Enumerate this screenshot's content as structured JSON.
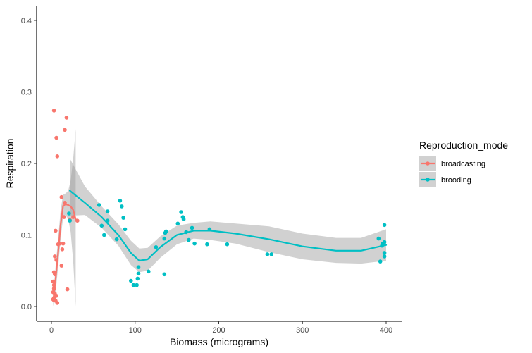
{
  "chart_data": {
    "type": "scatter",
    "title": "",
    "xlabel": "Biomass (micrograms)",
    "ylabel": "Respiration",
    "xlim": [
      -10,
      415
    ],
    "ylim": [
      -0.018,
      0.42
    ],
    "x_ticks": [
      0,
      100,
      200,
      300,
      400
    ],
    "y_ticks": [
      0.0,
      0.1,
      0.2,
      0.3,
      0.4
    ],
    "x_tick_labels": [
      "0",
      "100",
      "200",
      "300",
      "400"
    ],
    "y_tick_labels": [
      "0.0",
      "0.1",
      "0.2",
      "0.3",
      "0.4"
    ],
    "grid": false,
    "smoothing": "loess with confidence band",
    "legend": {
      "title": "Reproduction_mode",
      "placement": "right",
      "entries": [
        "broadcasting",
        "brooding"
      ]
    },
    "colors": {
      "broadcasting": "#F8766D",
      "brooding": "#00BFC4",
      "band": "#999999"
    },
    "series": [
      {
        "name": "broadcasting",
        "points": [
          [
            2,
            0.01
          ],
          [
            3,
            0.012
          ],
          [
            4,
            0.018
          ],
          [
            5,
            0.008
          ],
          [
            6,
            0.015
          ],
          [
            7,
            0.005
          ],
          [
            2,
            0.02
          ],
          [
            3,
            0.025
          ],
          [
            3,
            0.03
          ],
          [
            2,
            0.035
          ],
          [
            4,
            0.045
          ],
          [
            3,
            0.048
          ],
          [
            6,
            0.065
          ],
          [
            4,
            0.07
          ],
          [
            5,
            0.106
          ],
          [
            8,
            0.087
          ],
          [
            10,
            0.088
          ],
          [
            12,
            0.057
          ],
          [
            13,
            0.08
          ],
          [
            14,
            0.088
          ],
          [
            12,
            0.153
          ],
          [
            15,
            0.125
          ],
          [
            16,
            0.145
          ],
          [
            19,
            0.024
          ],
          [
            3,
            0.274
          ],
          [
            6,
            0.236
          ],
          [
            7,
            0.21
          ],
          [
            16,
            0.247
          ],
          [
            18,
            0.264
          ],
          [
            22,
            0.121
          ],
          [
            26,
            0.125
          ],
          [
            31,
            0.12
          ]
        ],
        "smooth_x": [
          2,
          5,
          8,
          11,
          14,
          17,
          20,
          23,
          26,
          29
        ],
        "smooth_y": [
          0.007,
          0.038,
          0.075,
          0.115,
          0.141,
          0.143,
          0.142,
          0.14,
          0.135,
          0.122
        ],
        "band_lower": [
          0.0,
          0.02,
          0.055,
          0.095,
          0.125,
          0.128,
          0.122,
          0.104,
          0.063,
          0.0
        ],
        "band_upper": [
          0.015,
          0.056,
          0.095,
          0.135,
          0.157,
          0.158,
          0.162,
          0.176,
          0.207,
          0.248
        ]
      },
      {
        "name": "brooding",
        "points": [
          [
            21,
            0.13
          ],
          [
            22,
            0.12
          ],
          [
            57,
            0.142
          ],
          [
            60,
            0.113
          ],
          [
            63,
            0.1
          ],
          [
            67,
            0.133
          ],
          [
            67,
            0.12
          ],
          [
            78,
            0.094
          ],
          [
            82,
            0.148
          ],
          [
            84,
            0.14
          ],
          [
            86,
            0.124
          ],
          [
            88,
            0.108
          ],
          [
            95,
            0.036
          ],
          [
            98,
            0.03
          ],
          [
            102,
            0.03
          ],
          [
            104,
            0.046
          ],
          [
            104,
            0.055
          ],
          [
            103,
            0.039
          ],
          [
            116,
            0.049
          ],
          [
            125,
            0.083
          ],
          [
            135,
            0.095
          ],
          [
            136,
            0.103
          ],
          [
            137,
            0.105
          ],
          [
            135,
            0.045
          ],
          [
            151,
            0.116
          ],
          [
            155,
            0.132
          ],
          [
            157,
            0.125
          ],
          [
            158,
            0.122
          ],
          [
            161,
            0.104
          ],
          [
            164,
            0.093
          ],
          [
            168,
            0.11
          ],
          [
            171,
            0.088
          ],
          [
            186,
            0.087
          ],
          [
            189,
            0.108
          ],
          [
            210,
            0.087
          ],
          [
            258,
            0.073
          ],
          [
            263,
            0.073
          ],
          [
            391,
            0.095
          ],
          [
            393,
            0.063
          ],
          [
            395,
            0.085
          ],
          [
            396,
            0.088
          ],
          [
            398,
            0.114
          ],
          [
            398,
            0.075
          ],
          [
            398,
            0.07
          ],
          [
            398,
            0.09
          ]
        ],
        "smooth_x": [
          22,
          40,
          60,
          80,
          95,
          105,
          115,
          130,
          150,
          170,
          190,
          220,
          260,
          300,
          340,
          370,
          400
        ],
        "smooth_y": [
          0.162,
          0.145,
          0.125,
          0.1,
          0.075,
          0.064,
          0.066,
          0.083,
          0.1,
          0.106,
          0.106,
          0.102,
          0.094,
          0.084,
          0.078,
          0.078,
          0.086
        ],
        "band_lower": [
          0.127,
          0.128,
          0.11,
          0.085,
          0.058,
          0.048,
          0.05,
          0.068,
          0.087,
          0.095,
          0.093,
          0.088,
          0.076,
          0.066,
          0.061,
          0.06,
          0.064
        ],
        "band_upper": [
          0.207,
          0.168,
          0.14,
          0.115,
          0.092,
          0.081,
          0.082,
          0.098,
          0.113,
          0.117,
          0.119,
          0.116,
          0.112,
          0.102,
          0.096,
          0.096,
          0.108
        ]
      }
    ]
  }
}
